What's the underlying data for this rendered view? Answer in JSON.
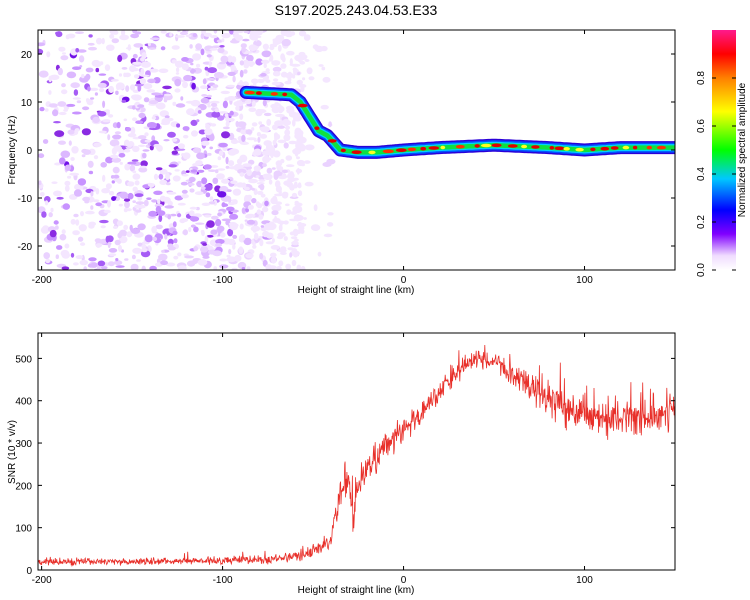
{
  "title": "S197.2025.243.04.53.E33",
  "chart_data": [
    {
      "type": "heatmap",
      "name": "spectrogram",
      "xlabel": "Height of straight line (km)",
      "ylabel": "Frequency (Hz)",
      "xlim": [
        -202,
        150
      ],
      "ylim": [
        -25,
        25
      ],
      "xticks": [
        -200,
        -100,
        0,
        100
      ],
      "yticks": [
        -20,
        -10,
        0,
        10,
        20
      ],
      "colorbar": {
        "label": "Normalized spectral amplitude",
        "range": [
          0,
          1
        ],
        "ticks": [
          "0.0",
          "0.2",
          "0.4",
          "0.6",
          "0.8"
        ]
      },
      "noise_region_x": [
        -202,
        -55
      ],
      "ridge": {
        "x": [
          -87,
          -62,
          -57,
          -52,
          -47,
          -42,
          -35,
          -25,
          -15,
          0,
          20,
          50,
          80,
          100,
          120,
          150
        ],
        "frequency": [
          12,
          11.5,
          10,
          7,
          4,
          3,
          0,
          -0.5,
          -0.5,
          0,
          0.5,
          1,
          0.5,
          0,
          0.5,
          0.5
        ]
      }
    },
    {
      "type": "line",
      "name": "snr",
      "xlabel": "Height of straight line (km)",
      "ylabel": "SNR (10 * v/v)",
      "xlim": [
        -202,
        150
      ],
      "ylim": [
        0,
        560
      ],
      "xticks": [
        -200,
        -100,
        0,
        100
      ],
      "yticks": [
        0,
        100,
        200,
        300,
        400,
        500
      ],
      "color": "#e8302a",
      "envelope": {
        "x": [
          -202,
          -150,
          -100,
          -70,
          -55,
          -45,
          -40,
          -37,
          -34,
          -30,
          -28,
          -25,
          -20,
          -10,
          0,
          10,
          20,
          30,
          40,
          50,
          60,
          75,
          90,
          100,
          110,
          120,
          130,
          140,
          150
        ],
        "mean": [
          20,
          20,
          22,
          25,
          35,
          55,
          80,
          140,
          200,
          210,
          120,
          200,
          250,
          290,
          330,
          380,
          420,
          470,
          500,
          490,
          460,
          420,
          380,
          370,
          360,
          360,
          360,
          370,
          380
        ],
        "noise": [
          8,
          8,
          8,
          10,
          12,
          18,
          25,
          35,
          45,
          40,
          50,
          40,
          35,
          30,
          28,
          25,
          25,
          25,
          25,
          25,
          28,
          35,
          40,
          40,
          40,
          42,
          45,
          45,
          45
        ]
      }
    }
  ]
}
